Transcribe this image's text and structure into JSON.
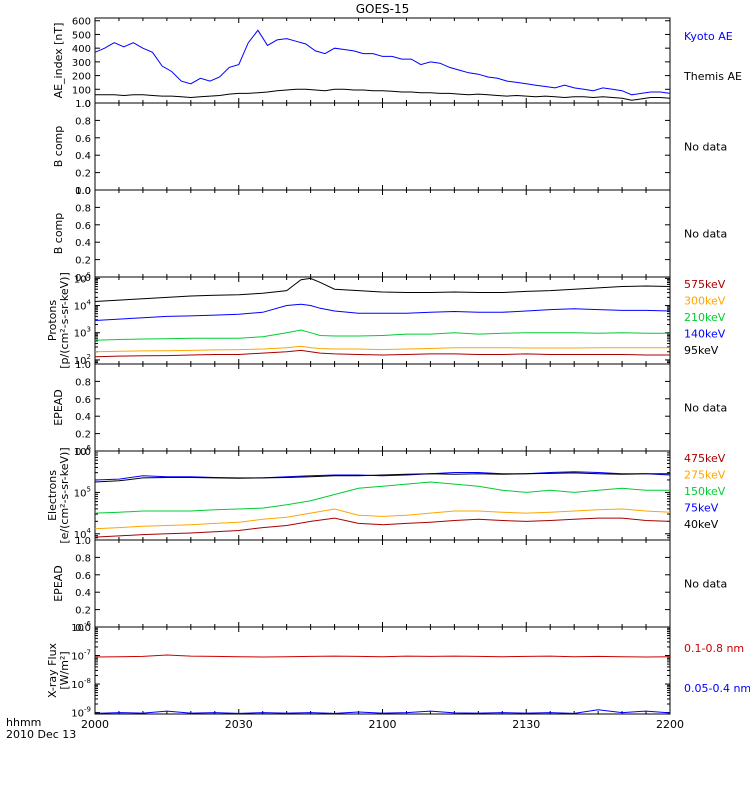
{
  "figure": {
    "title": "GOES-15",
    "bottom_left_line1": "hhmm",
    "bottom_left_line2": "2010 Dec 13",
    "x_ticks": [
      "2000",
      "2030",
      "2100",
      "2130",
      "2200"
    ]
  },
  "chart_data": [
    {
      "type": "line",
      "panel": "ae",
      "ylabel": "AE_index [nT]",
      "yticks": [
        "600",
        "500",
        "400",
        "300",
        "200",
        "100",
        "0"
      ],
      "ylim": [
        0,
        620
      ],
      "scale": "linear",
      "x_minutes": [
        0,
        2,
        4,
        6,
        8,
        10,
        12,
        14,
        16,
        18,
        20,
        22,
        24,
        26,
        28,
        30,
        32,
        34,
        36,
        38,
        40,
        42,
        44,
        46,
        48,
        50,
        52,
        54,
        56,
        58,
        60,
        62,
        64,
        66,
        68,
        70,
        72,
        74,
        76,
        78,
        80,
        82,
        84,
        86,
        88,
        90,
        92,
        94,
        96,
        98,
        100,
        102,
        104,
        106,
        108,
        110,
        112,
        114,
        116,
        118,
        120
      ],
      "series": [
        {
          "name": "Kyoto AE",
          "color": "#0000ff",
          "values": [
            370,
            400,
            440,
            410,
            440,
            400,
            370,
            270,
            230,
            160,
            140,
            180,
            160,
            190,
            260,
            280,
            440,
            530,
            420,
            460,
            470,
            450,
            430,
            380,
            360,
            400,
            390,
            380,
            360,
            360,
            340,
            340,
            320,
            320,
            280,
            300,
            290,
            260,
            240,
            220,
            210,
            190,
            180,
            160,
            150,
            140,
            130,
            120,
            110,
            130,
            110,
            100,
            90,
            110,
            100,
            90,
            60,
            70,
            80,
            80,
            70
          ]
        },
        {
          "name": "Themis AE",
          "color": "#000000",
          "values": [
            60,
            60,
            60,
            55,
            60,
            60,
            55,
            50,
            50,
            45,
            40,
            45,
            50,
            55,
            65,
            70,
            70,
            75,
            80,
            90,
            95,
            100,
            100,
            95,
            90,
            100,
            100,
            95,
            95,
            90,
            90,
            85,
            80,
            80,
            75,
            75,
            70,
            70,
            65,
            60,
            65,
            60,
            55,
            50,
            55,
            50,
            45,
            50,
            45,
            40,
            45,
            45,
            40,
            45,
            40,
            35,
            20,
            30,
            40,
            40,
            35
          ]
        }
      ]
    },
    {
      "type": "line",
      "panel": "b1",
      "ylabel": "B comp",
      "yticks": [
        "1.0",
        "0.8",
        "0.6",
        "0.4",
        "0.2",
        "0.0"
      ],
      "ylim": [
        0,
        1
      ],
      "nodata": "No data"
    },
    {
      "type": "line",
      "panel": "b2",
      "ylabel": "B comp",
      "yticks": [
        "1.0",
        "0.8",
        "0.6",
        "0.4",
        "0.2",
        "0.0"
      ],
      "ylim": [
        0,
        1
      ],
      "nodata": "No data"
    },
    {
      "type": "line",
      "panel": "protons",
      "ylabel_line1": "Protons",
      "ylabel_line2": "[p/(cm²-s-sr-keV)]",
      "yticks": [
        {
          "base": "10",
          "exp": "5",
          "value": 5
        },
        {
          "base": "10",
          "exp": "4",
          "value": 4
        },
        {
          "base": "10",
          "exp": "3",
          "value": 3
        },
        {
          "base": "10",
          "exp": "2",
          "value": 2
        }
      ],
      "ylim_log10": [
        1.85,
        5.05
      ],
      "scale": "log",
      "x_minutes": [
        0,
        5,
        10,
        15,
        20,
        25,
        30,
        35,
        40,
        43,
        45,
        47,
        50,
        55,
        60,
        65,
        70,
        75,
        80,
        85,
        90,
        95,
        100,
        105,
        110,
        115,
        120
      ],
      "series": [
        {
          "name": "575keV",
          "color": "#aa0000",
          "values_log10": [
            2.12,
            2.14,
            2.15,
            2.16,
            2.18,
            2.2,
            2.2,
            2.25,
            2.3,
            2.35,
            2.3,
            2.25,
            2.22,
            2.2,
            2.18,
            2.2,
            2.22,
            2.22,
            2.2,
            2.2,
            2.22,
            2.2,
            2.2,
            2.2,
            2.2,
            2.18,
            2.18
          ]
        },
        {
          "name": "300keV",
          "color": "#ffa500",
          "values_log10": [
            2.3,
            2.32,
            2.33,
            2.34,
            2.35,
            2.37,
            2.38,
            2.4,
            2.45,
            2.5,
            2.45,
            2.42,
            2.4,
            2.4,
            2.38,
            2.4,
            2.42,
            2.45,
            2.45,
            2.45,
            2.44,
            2.44,
            2.44,
            2.45,
            2.45,
            2.45,
            2.45
          ]
        },
        {
          "name": "210keV",
          "color": "#00cc33",
          "values_log10": [
            2.72,
            2.75,
            2.77,
            2.78,
            2.8,
            2.8,
            2.8,
            2.85,
            3.0,
            3.1,
            3.0,
            2.9,
            2.88,
            2.88,
            2.9,
            2.95,
            2.95,
            3.0,
            2.95,
            2.98,
            3.0,
            3.0,
            3.0,
            2.98,
            3.0,
            2.98,
            2.98
          ]
        },
        {
          "name": "140keV",
          "color": "#0000ff",
          "values_log10": [
            3.45,
            3.5,
            3.55,
            3.6,
            3.62,
            3.65,
            3.68,
            3.75,
            4.0,
            4.05,
            4.0,
            3.9,
            3.8,
            3.72,
            3.72,
            3.72,
            3.75,
            3.78,
            3.75,
            3.75,
            3.8,
            3.85,
            3.88,
            3.85,
            3.82,
            3.82,
            3.8
          ]
        },
        {
          "name": "95keV",
          "color": "#000000",
          "values_log10": [
            4.15,
            4.2,
            4.25,
            4.3,
            4.35,
            4.38,
            4.4,
            4.45,
            4.55,
            4.95,
            5.0,
            4.85,
            4.6,
            4.55,
            4.5,
            4.48,
            4.48,
            4.5,
            4.48,
            4.48,
            4.52,
            4.55,
            4.6,
            4.65,
            4.7,
            4.72,
            4.7
          ]
        }
      ]
    },
    {
      "type": "line",
      "panel": "epead1",
      "ylabel": "EPEAD",
      "yticks": [
        "1.0",
        "0.8",
        "0.6",
        "0.4",
        "0.2",
        "0.0"
      ],
      "ylim": [
        0,
        1
      ],
      "nodata": "No data"
    },
    {
      "type": "line",
      "panel": "electrons",
      "ylabel_line1": "Electrons",
      "ylabel_line2": "[e/(cm²-s-sr-keV)]",
      "yticks": [
        {
          "base": "10",
          "exp": "6",
          "value": 6
        },
        {
          "base": "10",
          "exp": "5",
          "value": 5
        },
        {
          "base": "10",
          "exp": "4",
          "value": 4
        }
      ],
      "ylim_log10": [
        3.85,
        6.0
      ],
      "scale": "log",
      "x_minutes": [
        0,
        5,
        10,
        15,
        20,
        25,
        30,
        35,
        40,
        45,
        50,
        55,
        60,
        65,
        70,
        75,
        80,
        85,
        90,
        95,
        100,
        105,
        110,
        115,
        120
      ],
      "series": [
        {
          "name": "475keV",
          "color": "#aa0000",
          "values_log10": [
            3.92,
            3.95,
            3.98,
            4.0,
            4.02,
            4.05,
            4.08,
            4.15,
            4.2,
            4.3,
            4.38,
            4.25,
            4.22,
            4.25,
            4.28,
            4.32,
            4.35,
            4.32,
            4.3,
            4.32,
            4.35,
            4.38,
            4.38,
            4.32,
            4.3
          ]
        },
        {
          "name": "275keV",
          "color": "#ffa500",
          "values_log10": [
            4.12,
            4.15,
            4.18,
            4.2,
            4.22,
            4.25,
            4.28,
            4.35,
            4.4,
            4.5,
            4.6,
            4.45,
            4.42,
            4.45,
            4.5,
            4.55,
            4.55,
            4.52,
            4.5,
            4.52,
            4.55,
            4.58,
            4.6,
            4.55,
            4.52
          ]
        },
        {
          "name": "150keV",
          "color": "#00cc33",
          "values_log10": [
            4.5,
            4.52,
            4.55,
            4.55,
            4.55,
            4.58,
            4.6,
            4.62,
            4.7,
            4.8,
            4.95,
            5.1,
            5.15,
            5.2,
            5.25,
            5.2,
            5.15,
            5.05,
            5.0,
            5.05,
            5.0,
            5.05,
            5.1,
            5.05,
            5.05
          ]
        },
        {
          "name": "75keV",
          "color": "#0000ff",
          "values_log10": [
            5.3,
            5.32,
            5.4,
            5.38,
            5.38,
            5.36,
            5.35,
            5.35,
            5.38,
            5.4,
            5.42,
            5.42,
            5.4,
            5.42,
            5.45,
            5.48,
            5.48,
            5.45,
            5.45,
            5.48,
            5.5,
            5.48,
            5.45,
            5.45,
            5.42
          ]
        },
        {
          "name": "40keV",
          "color": "#000000",
          "values_log10": [
            5.25,
            5.28,
            5.35,
            5.36,
            5.36,
            5.35,
            5.34,
            5.35,
            5.36,
            5.38,
            5.4,
            5.4,
            5.42,
            5.44,
            5.45,
            5.44,
            5.45,
            5.44,
            5.45,
            5.46,
            5.47,
            5.45,
            5.44,
            5.45,
            5.45
          ]
        }
      ]
    },
    {
      "type": "line",
      "panel": "epead2",
      "ylabel": "EPEAD",
      "yticks": [
        "1.0",
        "0.8",
        "0.6",
        "0.4",
        "0.2",
        "0.0"
      ],
      "ylim": [
        0,
        1
      ],
      "nodata": "No data"
    },
    {
      "type": "line",
      "panel": "xray",
      "ylabel_line1": "X-ray Flux",
      "ylabel_line2": "[W/m²]",
      "yticks": [
        {
          "base": "10",
          "exp": "-6",
          "value": -6
        },
        {
          "base": "10",
          "exp": "-7",
          "value": -7
        },
        {
          "base": "10",
          "exp": "-8",
          "value": -8
        },
        {
          "base": "10",
          "exp": "-9",
          "value": -9
        }
      ],
      "ylim_log10": [
        -9.05,
        -6.0
      ],
      "scale": "log",
      "x_minutes": [
        0,
        5,
        10,
        15,
        20,
        25,
        30,
        35,
        40,
        45,
        50,
        55,
        60,
        65,
        70,
        75,
        80,
        85,
        90,
        95,
        100,
        105,
        110,
        115,
        120
      ],
      "series": [
        {
          "name": "0.1-0.8 nm",
          "color": "#cc0000",
          "values_log10": [
            -7.05,
            -7.04,
            -7.03,
            -6.98,
            -7.02,
            -7.03,
            -7.04,
            -7.05,
            -7.04,
            -7.03,
            -7.02,
            -7.03,
            -7.04,
            -7.02,
            -7.03,
            -7.02,
            -7.03,
            -7.04,
            -7.03,
            -7.02,
            -7.04,
            -7.03,
            -7.04,
            -7.05,
            -7.04
          ]
        },
        {
          "name": "0.05-0.4 nm",
          "color": "#0000ff",
          "values_log10": [
            -9.03,
            -9.0,
            -9.02,
            -8.95,
            -9.02,
            -9.0,
            -9.03,
            -9.0,
            -9.02,
            -9.0,
            -9.03,
            -8.98,
            -9.02,
            -9.0,
            -8.95,
            -9.01,
            -9.02,
            -9.0,
            -9.02,
            -9.0,
            -9.03,
            -8.9,
            -9.0,
            -8.95,
            -9.01
          ]
        }
      ]
    }
  ]
}
